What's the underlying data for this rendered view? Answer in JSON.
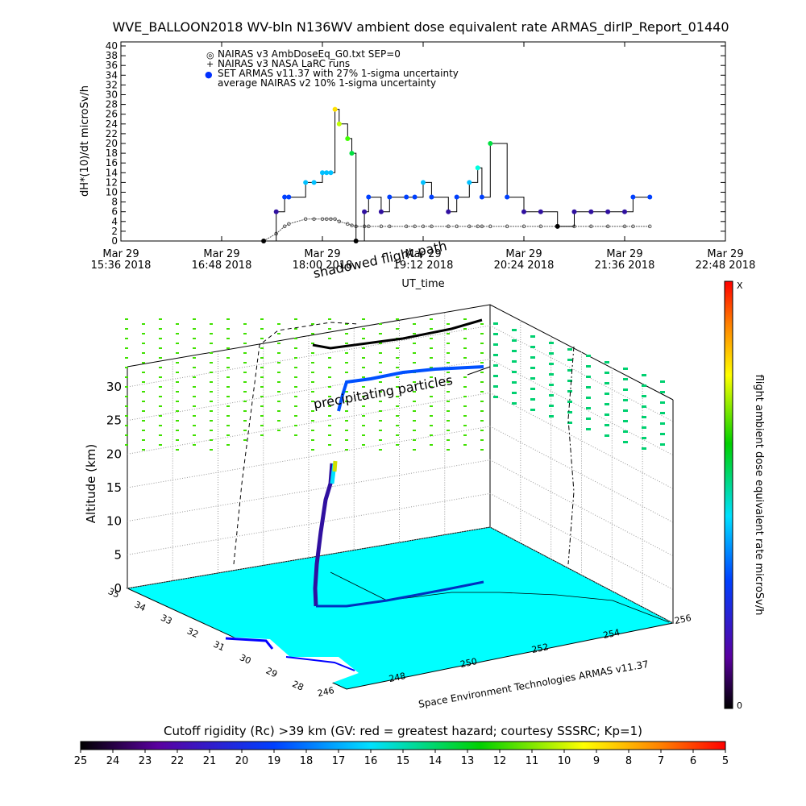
{
  "title": "WVE_BALLOON2018 WV-bln N136WV ambient dose equivalent rate ARMAS_dirIP_Report_01440",
  "chart_data": [
    {
      "type": "line",
      "ylabel": "dH*(10)/dt microSv/h",
      "xlabel": "UT_time",
      "ylim": [
        0,
        40
      ],
      "yticks": [
        "0",
        "2",
        "4",
        "6",
        "8",
        "10",
        "12",
        "14",
        "16",
        "18",
        "20",
        "22",
        "24",
        "26",
        "28",
        "30",
        "32",
        "34",
        "36",
        "38",
        "40"
      ],
      "xtick_labels": [
        {
          "date": "Mar 29",
          "time": "15:36 2018"
        },
        {
          "date": "Mar 29",
          "time": "16:48 2018"
        },
        {
          "date": "Mar 29",
          "time": "18:00 2018"
        },
        {
          "date": "Mar 29",
          "time": "19:12 2018"
        },
        {
          "date": "Mar 29",
          "time": "20:24 2018"
        },
        {
          "date": "Mar 29",
          "time": "21:36 2018"
        },
        {
          "date": "Mar 29",
          "time": "22:48 2018"
        }
      ],
      "legend": [
        {
          "symbol": "◎",
          "label": "NAIRAS v3 AmbDoseEq_G0.txt SEP=0"
        },
        {
          "symbol": "+",
          "label": "NAIRAS v3 NASA LaRC runs"
        },
        {
          "symbol": "●",
          "label": "SET ARMAS v11.37 with 27% 1-sigma uncertainty"
        },
        {
          "symbol": "",
          "label": "average NAIRAS v2 10% 1-sigma uncertainty"
        }
      ],
      "x_hours": [
        17.3,
        17.45,
        17.55,
        17.6,
        17.8,
        17.9,
        18.0,
        18.05,
        18.1,
        18.15,
        18.2,
        18.3,
        18.35,
        18.4,
        18.5,
        18.55,
        18.7,
        18.8,
        19.0,
        19.1,
        19.2,
        19.3,
        19.5,
        19.6,
        19.75,
        19.85,
        19.9,
        20.0,
        20.2,
        20.4,
        20.6,
        20.8,
        21.0,
        21.2,
        21.4,
        21.6,
        21.7,
        21.9
      ],
      "series": [
        {
          "name": "ARMAS",
          "values": [
            0,
            6,
            9,
            9,
            12,
            12,
            14,
            14,
            14,
            27,
            24,
            21,
            18,
            0,
            6,
            9,
            6,
            9,
            9,
            9,
            12,
            9,
            6,
            9,
            12,
            15,
            9,
            20,
            9,
            6,
            6,
            3,
            6,
            6,
            6,
            6,
            9,
            9
          ]
        },
        {
          "name": "NAIRAS v3",
          "values": [
            0,
            1.5,
            3,
            3.5,
            4.5,
            4.5,
            4.5,
            4.5,
            4.5,
            4.5,
            4,
            3.5,
            3.2,
            3,
            3,
            3,
            3,
            3,
            3,
            3,
            3,
            3,
            3,
            3,
            3,
            3,
            3,
            3,
            3,
            3,
            3,
            3,
            3,
            3,
            3,
            3,
            3,
            3
          ]
        }
      ]
    },
    {
      "type": "scatter",
      "zlabel": "Altitude (km)",
      "z_ticks": [
        "0",
        "5",
        "10",
        "15",
        "20",
        "25",
        "30"
      ],
      "lat_ticks": [
        "35",
        "34",
        "33",
        "32",
        "31",
        "30",
        "29",
        "28"
      ],
      "lon_ticks": [
        "246",
        "248",
        "250",
        "252",
        "254",
        "256"
      ],
      "annotations": [
        "shadowed flight path",
        "precipitating particles"
      ],
      "colorbar_label": "flight ambient dose equivalent rate microSv/h",
      "colorbar_top": "X",
      "colorbar_bottom": "0",
      "credit": "Space Environment Technologies ARMAS v11.37"
    },
    {
      "type": "heatmap",
      "colorbar_title": "Cutoff rigidity (Rc) >39 km (GV: red = greatest hazard; courtesy SSSRC; Kp=1)",
      "ticks": [
        "25",
        "24",
        "23",
        "22",
        "21",
        "20",
        "19",
        "18",
        "17",
        "16",
        "15",
        "14",
        "13",
        "12",
        "11",
        "10",
        "9",
        "8",
        "7",
        "6",
        "5"
      ]
    }
  ]
}
